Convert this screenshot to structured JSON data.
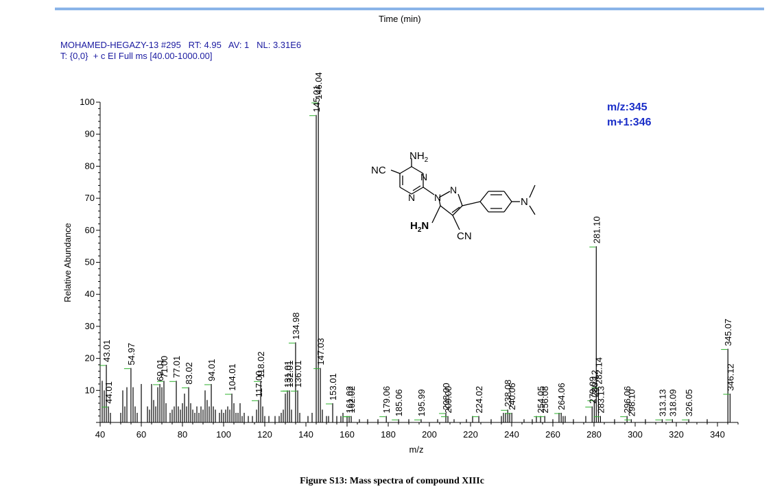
{
  "header": {
    "time_label": "Time (min)",
    "scan_line": "MOHAMED-HEGAZY-13 #295   RT: 4.95   AV: 1   NL: 3.31E6",
    "filter_line": "T: {0,0}  + c EI Full ms [40.00-1000.00]"
  },
  "mz_info": {
    "mz": "m/z:345",
    "m_plus_1": "m+1:346"
  },
  "structure": {
    "nh2_top": "NH",
    "nh2_bottom": "H",
    "nc_left": "NC",
    "cn_bottom": "CN",
    "n_labels": [
      "N",
      "N",
      "N",
      "N",
      "N"
    ]
  },
  "caption": "Figure S13: Mass spectra of compound XIIIc",
  "chart_data": {
    "type": "bar",
    "title": "",
    "xlabel": "m/z",
    "ylabel": "Relative Abundance",
    "xlim": [
      40,
      350
    ],
    "ylim": [
      0,
      100
    ],
    "xticks": [
      40,
      60,
      80,
      100,
      120,
      140,
      160,
      180,
      200,
      220,
      240,
      260,
      280,
      300,
      320,
      340
    ],
    "yticks": [
      10,
      20,
      30,
      40,
      50,
      60,
      70,
      80,
      90,
      100
    ],
    "peaks": [
      {
        "mz": 41.0,
        "rel": 13
      },
      {
        "mz": 42.0,
        "rel": 10
      },
      {
        "mz": 43.01,
        "rel": 18,
        "label": "43.01"
      },
      {
        "mz": 44.01,
        "rel": 5,
        "label": "44.01"
      },
      {
        "mz": 45.0,
        "rel": 3
      },
      {
        "mz": 50.0,
        "rel": 3
      },
      {
        "mz": 51.0,
        "rel": 10
      },
      {
        "mz": 52.0,
        "rel": 5
      },
      {
        "mz": 53.0,
        "rel": 11
      },
      {
        "mz": 54.97,
        "rel": 17,
        "label": "54.97"
      },
      {
        "mz": 56.0,
        "rel": 11
      },
      {
        "mz": 57.0,
        "rel": 5
      },
      {
        "mz": 58.0,
        "rel": 3
      },
      {
        "mz": 60.0,
        "rel": 12
      },
      {
        "mz": 63.0,
        "rel": 5
      },
      {
        "mz": 64.0,
        "rel": 4
      },
      {
        "mz": 65.0,
        "rel": 12
      },
      {
        "mz": 66.0,
        "rel": 7
      },
      {
        "mz": 67.0,
        "rel": 5
      },
      {
        "mz": 68.0,
        "rel": 11
      },
      {
        "mz": 69.01,
        "rel": 12,
        "label": "69.01"
      },
      {
        "mz": 70.0,
        "rel": 11
      },
      {
        "mz": 71.0,
        "rel": 13,
        "label": "71.00"
      },
      {
        "mz": 72.0,
        "rel": 6
      },
      {
        "mz": 74.0,
        "rel": 3
      },
      {
        "mz": 75.0,
        "rel": 4
      },
      {
        "mz": 76.0,
        "rel": 5
      },
      {
        "mz": 77.01,
        "rel": 13,
        "label": "77.01"
      },
      {
        "mz": 78.0,
        "rel": 5
      },
      {
        "mz": 79.0,
        "rel": 4
      },
      {
        "mz": 80.0,
        "rel": 6
      },
      {
        "mz": 81.0,
        "rel": 9
      },
      {
        "mz": 82.0,
        "rel": 5
      },
      {
        "mz": 83.02,
        "rel": 11,
        "label": "83.02"
      },
      {
        "mz": 84.0,
        "rel": 6
      },
      {
        "mz": 85.0,
        "rel": 4
      },
      {
        "mz": 86.0,
        "rel": 3
      },
      {
        "mz": 87.0,
        "rel": 5
      },
      {
        "mz": 88.0,
        "rel": 3
      },
      {
        "mz": 89.0,
        "rel": 5
      },
      {
        "mz": 90.0,
        "rel": 4
      },
      {
        "mz": 91.0,
        "rel": 10
      },
      {
        "mz": 92.0,
        "rel": 7
      },
      {
        "mz": 93.0,
        "rel": 5
      },
      {
        "mz": 94.01,
        "rel": 12,
        "label": "94.01"
      },
      {
        "mz": 95.0,
        "rel": 5
      },
      {
        "mz": 96.0,
        "rel": 4
      },
      {
        "mz": 98.0,
        "rel": 3
      },
      {
        "mz": 99.0,
        "rel": 4
      },
      {
        "mz": 100.0,
        "rel": 3
      },
      {
        "mz": 101.0,
        "rel": 4
      },
      {
        "mz": 102.0,
        "rel": 5
      },
      {
        "mz": 103.0,
        "rel": 4
      },
      {
        "mz": 104.01,
        "rel": 9,
        "label": "104.01"
      },
      {
        "mz": 105.0,
        "rel": 6
      },
      {
        "mz": 106.0,
        "rel": 3
      },
      {
        "mz": 107.0,
        "rel": 3
      },
      {
        "mz": 108.0,
        "rel": 6
      },
      {
        "mz": 109.0,
        "rel": 2
      },
      {
        "mz": 110.0,
        "rel": 3
      },
      {
        "mz": 112.0,
        "rel": 2
      },
      {
        "mz": 114.0,
        "rel": 2
      },
      {
        "mz": 116.0,
        "rel": 4
      },
      {
        "mz": 117.0,
        "rel": 7,
        "label": "117.00"
      },
      {
        "mz": 118.02,
        "rel": 13,
        "label": "118.02"
      },
      {
        "mz": 119.0,
        "rel": 5
      },
      {
        "mz": 120.0,
        "rel": 2
      },
      {
        "mz": 122.0,
        "rel": 2
      },
      {
        "mz": 125.0,
        "rel": 2
      },
      {
        "mz": 127.0,
        "rel": 2
      },
      {
        "mz": 128.0,
        "rel": 3
      },
      {
        "mz": 129.0,
        "rel": 4
      },
      {
        "mz": 130.0,
        "rel": 9
      },
      {
        "mz": 131.01,
        "rel": 10,
        "label": "131.01"
      },
      {
        "mz": 132.01,
        "rel": 10,
        "label": "132.01"
      },
      {
        "mz": 133.0,
        "rel": 4
      },
      {
        "mz": 134.98,
        "rel": 25,
        "label": "134.98"
      },
      {
        "mz": 136.01,
        "rel": 10,
        "label": "136.01"
      },
      {
        "mz": 137.0,
        "rel": 3
      },
      {
        "mz": 141.0,
        "rel": 2
      },
      {
        "mz": 143.0,
        "rel": 3
      },
      {
        "mz": 145.01,
        "rel": 96,
        "label": "145.01"
      },
      {
        "mz": 146.04,
        "rel": 100,
        "label": "146.04"
      },
      {
        "mz": 147.03,
        "rel": 17,
        "label": "147.03"
      },
      {
        "mz": 148.0,
        "rel": 4
      },
      {
        "mz": 150.0,
        "rel": 2
      },
      {
        "mz": 151.0,
        "rel": 2
      },
      {
        "mz": 153.01,
        "rel": 6,
        "label": "153.01"
      },
      {
        "mz": 155.0,
        "rel": 2
      },
      {
        "mz": 157.0,
        "rel": 2
      },
      {
        "mz": 158.0,
        "rel": 3
      },
      {
        "mz": 160.0,
        "rel": 2
      },
      {
        "mz": 161.02,
        "rel": 2,
        "label": "161.02"
      },
      {
        "mz": 162.02,
        "rel": 2,
        "label": "162.02"
      },
      {
        "mz": 166.0,
        "rel": 1
      },
      {
        "mz": 170.0,
        "rel": 1
      },
      {
        "mz": 175.0,
        "rel": 1
      },
      {
        "mz": 179.06,
        "rel": 2,
        "label": "179.06"
      },
      {
        "mz": 185.06,
        "rel": 1,
        "label": "185.06"
      },
      {
        "mz": 190.0,
        "rel": 1
      },
      {
        "mz": 195.99,
        "rel": 1,
        "label": "195.99"
      },
      {
        "mz": 204.0,
        "rel": 1
      },
      {
        "mz": 208.0,
        "rel": 3,
        "label": "208.00"
      },
      {
        "mz": 209.0,
        "rel": 2,
        "label": "209.00"
      },
      {
        "mz": 212.0,
        "rel": 1
      },
      {
        "mz": 218.0,
        "rel": 1
      },
      {
        "mz": 221.0,
        "rel": 2
      },
      {
        "mz": 224.02,
        "rel": 2,
        "label": "224.02"
      },
      {
        "mz": 230.0,
        "rel": 1
      },
      {
        "mz": 235.0,
        "rel": 2
      },
      {
        "mz": 236.0,
        "rel": 3
      },
      {
        "mz": 237.0,
        "rel": 3
      },
      {
        "mz": 238.08,
        "rel": 4,
        "label": "238.08"
      },
      {
        "mz": 239.0,
        "rel": 3
      },
      {
        "mz": 240.06,
        "rel": 3,
        "label": "240.06"
      },
      {
        "mz": 246.0,
        "rel": 1
      },
      {
        "mz": 250.0,
        "rel": 1
      },
      {
        "mz": 252.0,
        "rel": 2
      },
      {
        "mz": 254.05,
        "rel": 2,
        "label": "254.05"
      },
      {
        "mz": 256.08,
        "rel": 2,
        "label": "256.08"
      },
      {
        "mz": 260.0,
        "rel": 1
      },
      {
        "mz": 263.0,
        "rel": 3
      },
      {
        "mz": 264.06,
        "rel": 3,
        "label": "264.06"
      },
      {
        "mz": 265.0,
        "rel": 2
      },
      {
        "mz": 266.0,
        "rel": 2
      },
      {
        "mz": 270.0,
        "rel": 1
      },
      {
        "mz": 276.0,
        "rel": 2
      },
      {
        "mz": 279.09,
        "rel": 5,
        "label": "279.09"
      },
      {
        "mz": 280.12,
        "rel": 7,
        "label": "280.12"
      },
      {
        "mz": 281.1,
        "rel": 55,
        "label": "281.10"
      },
      {
        "mz": 282.14,
        "rel": 11,
        "label": "282.14"
      },
      {
        "mz": 283.13,
        "rel": 2,
        "label": "283.13"
      },
      {
        "mz": 290.0,
        "rel": 1
      },
      {
        "mz": 296.06,
        "rel": 2,
        "label": "296.06"
      },
      {
        "mz": 298.1,
        "rel": 1,
        "label": "298.10"
      },
      {
        "mz": 305.0,
        "rel": 1
      },
      {
        "mz": 313.13,
        "rel": 1,
        "label": "313.13"
      },
      {
        "mz": 318.09,
        "rel": 1,
        "label": "318.09"
      },
      {
        "mz": 326.05,
        "rel": 1,
        "label": "326.05"
      },
      {
        "mz": 335.0,
        "rel": 1
      },
      {
        "mz": 345.07,
        "rel": 23,
        "label": "345.07"
      },
      {
        "mz": 346.12,
        "rel": 9,
        "label": "346.12"
      }
    ]
  }
}
